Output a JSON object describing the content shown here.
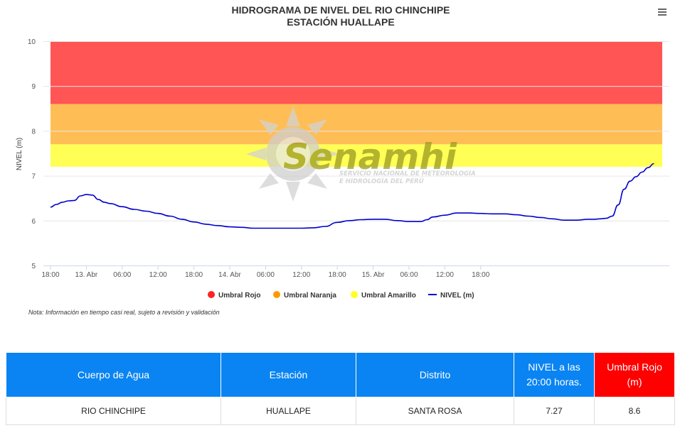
{
  "menu_icon": "hamburger-menu-icon",
  "chart_data": {
    "type": "line",
    "title": "HIDROGRAMA DE NIVEL DEL RIO CHINCHIPE",
    "subtitle": "ESTACIÓN HUALLAPE",
    "ylabel": "NIVEL (m)",
    "ylim": [
      5,
      10
    ],
    "yticks": [
      5,
      6,
      7,
      8,
      9,
      10
    ],
    "xticks": [
      "18:00",
      "13. Abr",
      "06:00",
      "12:00",
      "18:00",
      "14. Abr",
      "06:00",
      "12:00",
      "18:00",
      "15. Abr",
      "06:00",
      "12:00",
      "18:00"
    ],
    "bands": [
      {
        "name": "Umbral Rojo",
        "from": 8.6,
        "to": 10,
        "color": "#ff5555"
      },
      {
        "name": "Umbral Naranja",
        "from": 7.7,
        "to": 8.6,
        "color": "#ffbe55"
      },
      {
        "name": "Umbral Amarillo",
        "from": 7.2,
        "to": 7.7,
        "color": "#ffff55"
      }
    ],
    "series": [
      {
        "name": "NIVEL (m)",
        "color": "#0000cc",
        "x_hours": [
          0,
          1,
          2,
          3,
          4,
          5,
          6,
          7,
          8,
          9,
          10,
          12,
          14,
          16,
          18,
          20,
          22,
          24,
          26,
          28,
          30,
          32,
          34,
          36,
          38,
          40,
          41,
          42,
          44,
          46,
          48,
          50,
          52,
          54,
          56,
          58,
          60,
          62,
          63,
          64,
          66,
          68,
          70,
          72,
          74,
          76,
          78,
          80,
          82,
          84,
          86,
          88,
          90,
          91,
          92,
          93,
          94,
          95,
          96,
          97,
          98,
          99,
          100,
          101
        ],
        "values": [
          6.3,
          6.36,
          6.41,
          6.44,
          6.45,
          6.55,
          6.58,
          6.57,
          6.47,
          6.41,
          6.38,
          6.31,
          6.25,
          6.21,
          6.16,
          6.1,
          6.03,
          5.97,
          5.92,
          5.89,
          5.86,
          5.85,
          5.83,
          5.83,
          5.83,
          5.83,
          5.83,
          5.83,
          5.84,
          5.87,
          5.96,
          6.0,
          6.02,
          6.03,
          6.03,
          6.0,
          5.98,
          5.98,
          6.02,
          6.08,
          6.12,
          6.17,
          6.17,
          6.16,
          6.15,
          6.15,
          6.13,
          6.1,
          6.07,
          6.04,
          6.01,
          6.01,
          6.03,
          6.03,
          6.04,
          6.05,
          6.1,
          6.35,
          6.7,
          6.88,
          6.98,
          7.08,
          7.18,
          7.27
        ]
      }
    ],
    "legend": [
      "Umbral Rojo",
      "Umbral Naranja",
      "Umbral Amarillo",
      "NIVEL (m)"
    ],
    "legend_colors": [
      "#ff2222",
      "#ff9900",
      "#ffff22",
      "#0000cc"
    ],
    "legend_position": "bottom-center",
    "note": "Nota: Información en tiempo casi real, sujeto a revisión y validación",
    "watermark": {
      "brand": "Senamhi",
      "line1": "SERVICIO NACIONAL DE METEOROLOGÍA",
      "line2": "E HIDROLOGÍA DEL PERÚ"
    }
  },
  "table": {
    "headers": [
      "Cuerpo de Agua",
      "Estación",
      "Distrito",
      "NIVEL a las 20:00 horas.",
      "Umbral Rojo (m)"
    ],
    "row": [
      "RIO CHINCHIPE",
      "HUALLAPE",
      "SANTA ROSA",
      "7.27",
      "8.6"
    ]
  }
}
